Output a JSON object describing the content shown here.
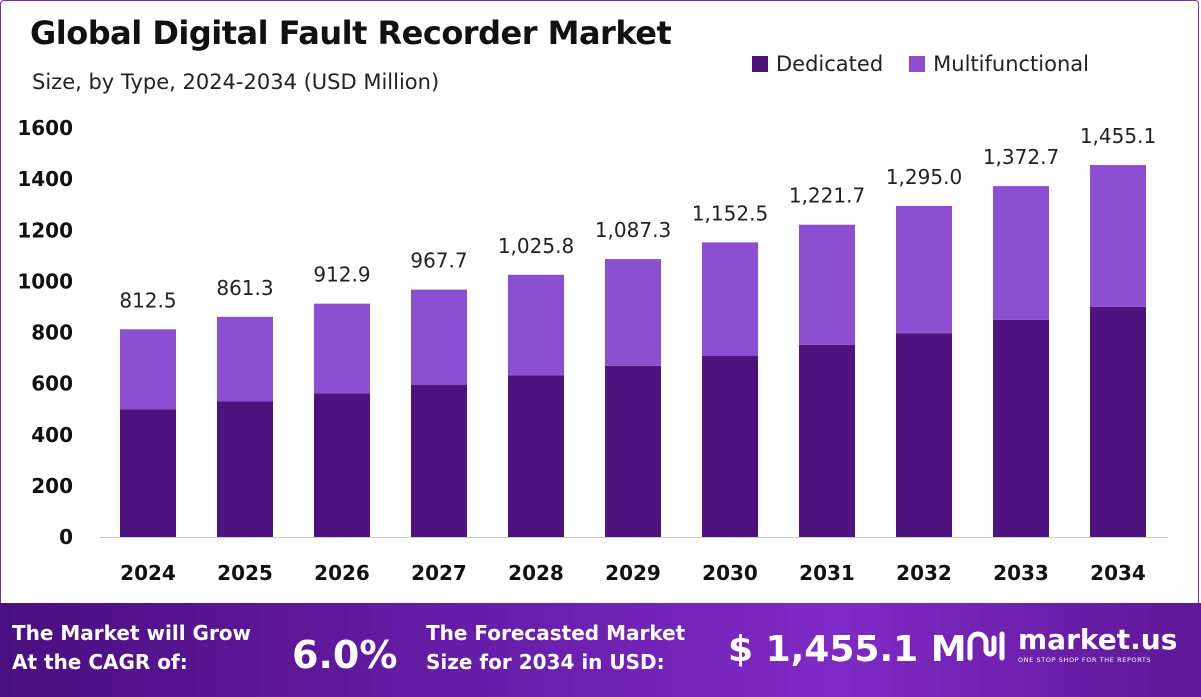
{
  "header": {
    "title": "Global Digital Fault Recorder Market",
    "subtitle": "Size, by Type, 2024-2034 (USD Million)"
  },
  "colors": {
    "dedicated": "#4f137f",
    "multifunctional": "#8c4fd2",
    "footer": "#6b1fae"
  },
  "legend": {
    "items": [
      "Dedicated",
      "Multifunctional"
    ]
  },
  "chart_data": {
    "type": "bar",
    "stacked": true,
    "title": "Global Digital Fault Recorder Market",
    "subtitle": "Size, by Type, 2024-2034 (USD Million)",
    "categories": [
      "2024",
      "2025",
      "2026",
      "2027",
      "2028",
      "2029",
      "2030",
      "2031",
      "2032",
      "2033",
      "2034"
    ],
    "series": [
      {
        "name": "Dedicated",
        "values": [
          500,
          530,
          562,
          596,
          632,
          670,
          708,
          752,
          797,
          850,
          900
        ]
      },
      {
        "name": "Multifunctional",
        "values": [
          312.5,
          331.3,
          350.9,
          371.7,
          393.8,
          417.3,
          444.5,
          469.7,
          498.0,
          522.7,
          555.1
        ]
      }
    ],
    "totals": [
      "812.5",
      "861.3",
      "912.9",
      "967.7",
      "1,025.8",
      "1,087.3",
      "1,152.5",
      "1,221.7",
      "1,295.0",
      "1,372.7",
      "1,455.1"
    ],
    "totals_values": [
      812.5,
      861.3,
      912.9,
      967.7,
      1025.8,
      1087.3,
      1152.5,
      1221.7,
      1295.0,
      1372.7,
      1455.1
    ],
    "yticks": [
      "0",
      "200",
      "400",
      "600",
      "800",
      "1000",
      "1200",
      "1400",
      "1600"
    ],
    "ylim": [
      0,
      1600
    ],
    "legend_position": "top-right",
    "grid": false
  },
  "footer": {
    "cagr_label_line1": "The Market will Grow",
    "cagr_label_line2": "At the CAGR of:",
    "cagr_value": "6.0%",
    "forecast_label_line1": "The Forecasted Market",
    "forecast_label_line2": "Size for 2034 in USD:",
    "forecast_value": "$ 1,455.1 M",
    "logo_name": "market.us",
    "logo_tagline": "ONE STOP SHOP FOR THE REPORTS",
    "logo_icon": "market-us-logo-icon"
  }
}
